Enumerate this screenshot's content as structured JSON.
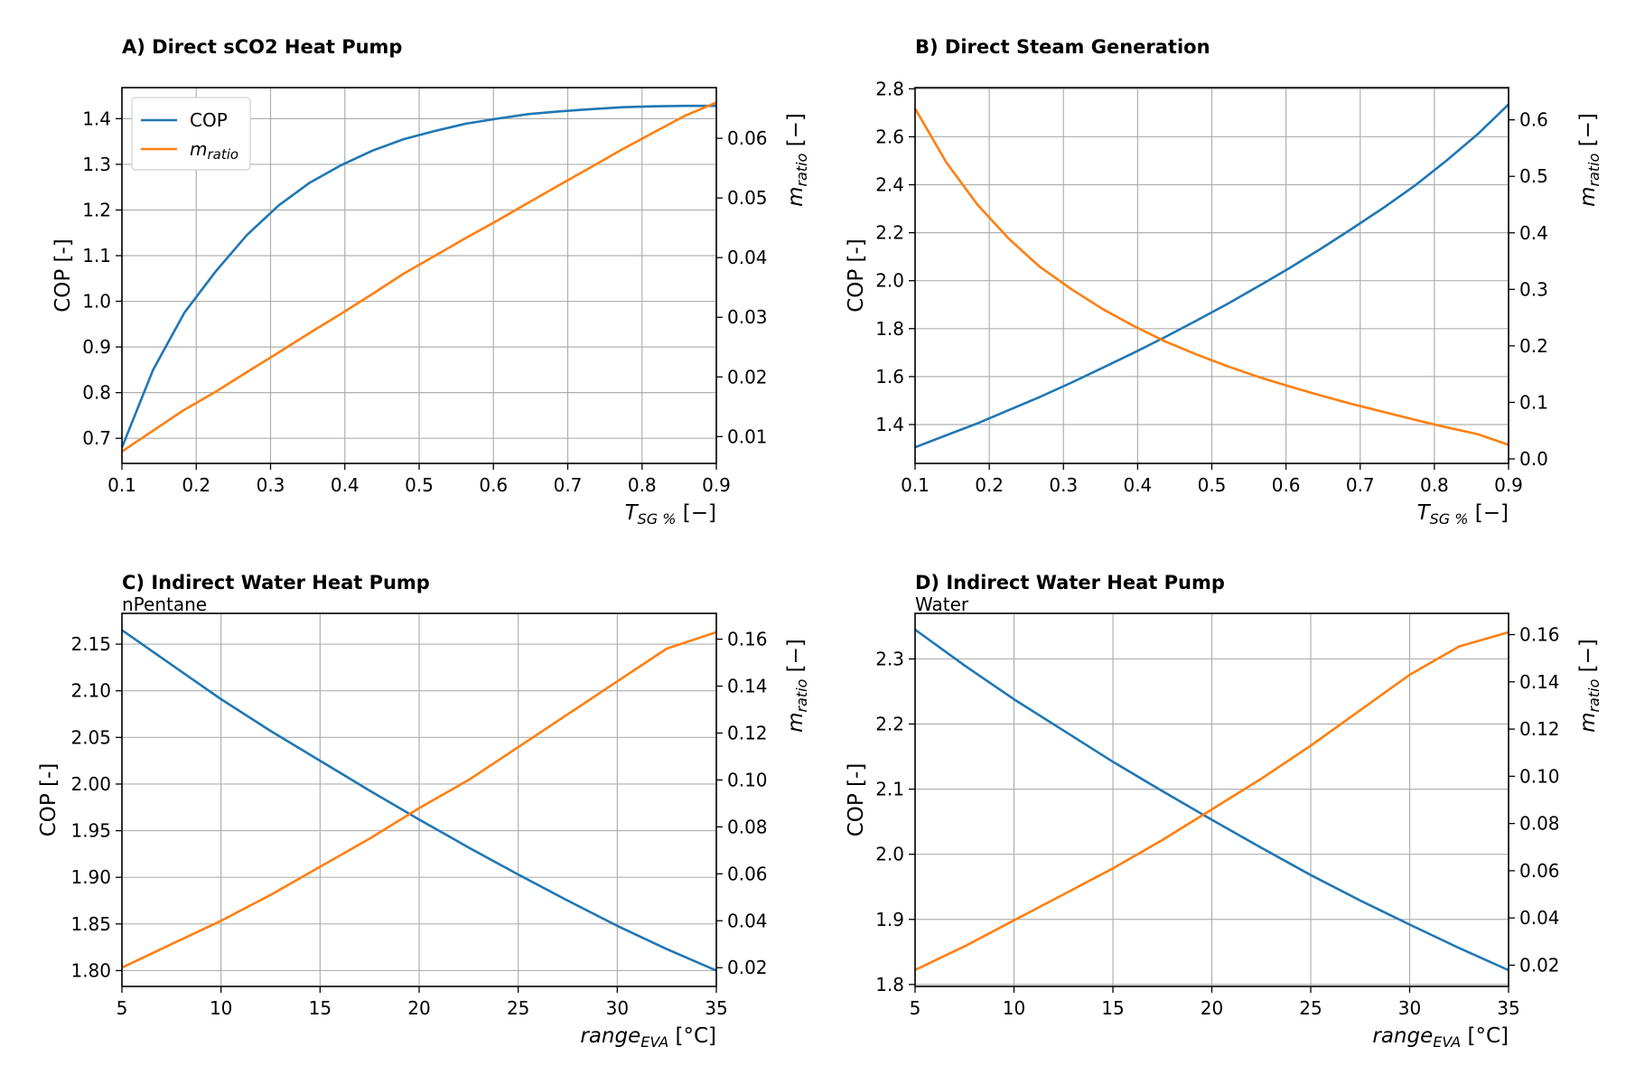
{
  "colors": {
    "cop": "#1f77b4",
    "mratio": "#ff7f0e"
  },
  "legend": [
    {
      "name": "COP",
      "color": "#1f77b4"
    },
    {
      "name": "m",
      "sub": "ratio",
      "color": "#ff7f0e"
    }
  ],
  "chart_data": [
    {
      "type": "line",
      "title": "A) Direct sCO2 Heat Pump",
      "subtitle": "",
      "ylabel": "COP [-]",
      "y2label": {
        "main": "m",
        "sub": "ratio",
        "unit": " [−]"
      },
      "xlabel": {
        "main": "T",
        "sub": "SG %",
        "unit": " [−]"
      },
      "xlim": [
        0.1,
        0.9
      ],
      "ylim": [
        0.645,
        1.468
      ],
      "y2lim": [
        0.0055,
        0.0685
      ],
      "xticks": [
        0.1,
        0.2,
        0.3,
        0.4,
        0.5,
        0.6,
        0.7,
        0.8,
        0.9
      ],
      "yticks": [
        0.7,
        0.8,
        0.9,
        1.0,
        1.1,
        1.2,
        1.3,
        1.4
      ],
      "y2ticks": [
        0.01,
        0.02,
        0.03,
        0.04,
        0.05,
        0.06
      ],
      "ytick_decimals": 1,
      "y2tick_decimals": 2,
      "xtick_decimals": 1,
      "grid": true,
      "legend_position": "upper-left",
      "x": [
        0.1,
        0.142,
        0.184,
        0.226,
        0.268,
        0.311,
        0.353,
        0.395,
        0.437,
        0.479,
        0.521,
        0.563,
        0.605,
        0.647,
        0.689,
        0.732,
        0.774,
        0.816,
        0.858,
        0.9
      ],
      "series": [
        {
          "name": "COP",
          "axis": "left",
          "values": [
            0.68,
            0.85,
            0.975,
            1.065,
            1.145,
            1.21,
            1.26,
            1.298,
            1.33,
            1.355,
            1.373,
            1.389,
            1.4,
            1.41,
            1.416,
            1.421,
            1.425,
            1.427,
            1.428,
            1.428
          ]
        },
        {
          "name": "m_ratio",
          "axis": "right",
          "values": [
            0.0075,
            0.011,
            0.0145,
            0.0175,
            0.0208,
            0.0241,
            0.0274,
            0.0306,
            0.0339,
            0.0373,
            0.0403,
            0.0433,
            0.0462,
            0.0492,
            0.0522,
            0.0552,
            0.0582,
            0.061,
            0.0638,
            0.066
          ]
        }
      ]
    },
    {
      "type": "line",
      "title": "B) Direct Steam Generation",
      "subtitle": "",
      "ylabel": "COP [-]",
      "y2label": {
        "main": "m",
        "sub": "ratio",
        "unit": " [−]"
      },
      "xlabel": {
        "main": "T",
        "sub": "SG %",
        "unit": " [−]"
      },
      "xlim": [
        0.1,
        0.9
      ],
      "ylim": [
        1.238,
        2.805
      ],
      "y2lim": [
        -0.008,
        0.657
      ],
      "xticks": [
        0.1,
        0.2,
        0.3,
        0.4,
        0.5,
        0.6,
        0.7,
        0.8,
        0.9
      ],
      "yticks": [
        1.4,
        1.6,
        1.8,
        2.0,
        2.2,
        2.4,
        2.6,
        2.8
      ],
      "y2ticks": [
        0.0,
        0.1,
        0.2,
        0.3,
        0.4,
        0.5,
        0.6
      ],
      "ytick_decimals": 1,
      "y2tick_decimals": 1,
      "xtick_decimals": 1,
      "grid": true,
      "legend_position": "",
      "x": [
        0.1,
        0.142,
        0.184,
        0.226,
        0.268,
        0.311,
        0.353,
        0.395,
        0.437,
        0.479,
        0.521,
        0.563,
        0.605,
        0.647,
        0.689,
        0.732,
        0.774,
        0.816,
        0.858,
        0.9
      ],
      "series": [
        {
          "name": "COP",
          "axis": "left",
          "values": [
            1.305,
            1.355,
            1.405,
            1.46,
            1.515,
            1.575,
            1.637,
            1.7,
            1.765,
            1.833,
            1.903,
            1.977,
            2.053,
            2.133,
            2.217,
            2.305,
            2.397,
            2.5,
            2.61,
            2.735
          ]
        },
        {
          "name": "m_ratio",
          "axis": "right",
          "values": [
            0.62,
            0.525,
            0.45,
            0.39,
            0.34,
            0.3,
            0.265,
            0.235,
            0.208,
            0.185,
            0.164,
            0.145,
            0.128,
            0.112,
            0.097,
            0.083,
            0.069,
            0.056,
            0.044,
            0.025
          ]
        }
      ]
    },
    {
      "type": "line",
      "title": "C) Indirect Water Heat Pump",
      "subtitle": "nPentane",
      "ylabel": "COP [-]",
      "y2label": {
        "main": "m",
        "sub": "ratio",
        "unit": " [−]"
      },
      "xlabel": {
        "main": "range",
        "sub": "EVA",
        "unit": " [°C]"
      },
      "xlim": [
        5,
        35
      ],
      "ylim": [
        1.783,
        2.183
      ],
      "y2lim": [
        0.012,
        0.171
      ],
      "xticks": [
        5,
        10,
        15,
        20,
        25,
        30,
        35
      ],
      "yticks": [
        1.8,
        1.85,
        1.9,
        1.95,
        2.0,
        2.05,
        2.1,
        2.15
      ],
      "y2ticks": [
        0.02,
        0.04,
        0.06,
        0.08,
        0.1,
        0.12,
        0.14,
        0.16
      ],
      "ytick_decimals": 2,
      "y2tick_decimals": 2,
      "xtick_decimals": 0,
      "grid": true,
      "legend_position": "",
      "x": [
        5,
        7.5,
        10,
        12.5,
        15,
        17.5,
        20,
        22.5,
        25,
        27.5,
        30,
        32.5,
        35
      ],
      "series": [
        {
          "name": "COP",
          "axis": "left",
          "values": [
            2.165,
            2.128,
            2.091,
            2.057,
            2.025,
            1.993,
            1.962,
            1.932,
            1.903,
            1.875,
            1.848,
            1.823,
            1.8
          ]
        },
        {
          "name": "m_ratio",
          "axis": "right",
          "values": [
            0.02,
            0.03,
            0.04,
            0.051,
            0.063,
            0.075,
            0.088,
            0.1,
            0.114,
            0.128,
            0.142,
            0.156,
            0.163
          ]
        }
      ]
    },
    {
      "type": "line",
      "title": "D) Indirect Water Heat Pump",
      "subtitle": "Water",
      "ylabel": "COP [-]",
      "y2label": {
        "main": "m",
        "sub": "ratio",
        "unit": " [−]"
      },
      "xlabel": {
        "main": "range",
        "sub": "EVA",
        "unit": " [°C]"
      },
      "xlim": [
        5,
        35
      ],
      "ylim": [
        1.797,
        2.37
      ],
      "y2lim": [
        0.011,
        0.169
      ],
      "xticks": [
        5,
        10,
        15,
        20,
        25,
        30,
        35
      ],
      "yticks": [
        1.8,
        1.9,
        2.0,
        2.1,
        2.2,
        2.3
      ],
      "y2ticks": [
        0.02,
        0.04,
        0.06,
        0.08,
        0.1,
        0.12,
        0.14,
        0.16
      ],
      "ytick_decimals": 1,
      "y2tick_decimals": 2,
      "xtick_decimals": 0,
      "grid": true,
      "legend_position": "",
      "x": [
        5,
        7.5,
        10,
        12.5,
        15,
        17.5,
        20,
        22.5,
        25,
        27.5,
        30,
        32.5,
        35
      ],
      "series": [
        {
          "name": "COP",
          "axis": "left",
          "values": [
            2.345,
            2.29,
            2.238,
            2.19,
            2.142,
            2.097,
            2.053,
            2.01,
            1.968,
            1.929,
            1.892,
            1.856,
            1.822
          ]
        },
        {
          "name": "m_ratio",
          "axis": "right",
          "values": [
            0.018,
            0.028,
            0.039,
            0.05,
            0.061,
            0.073,
            0.086,
            0.099,
            0.113,
            0.128,
            0.143,
            0.155,
            0.161
          ]
        }
      ]
    }
  ]
}
